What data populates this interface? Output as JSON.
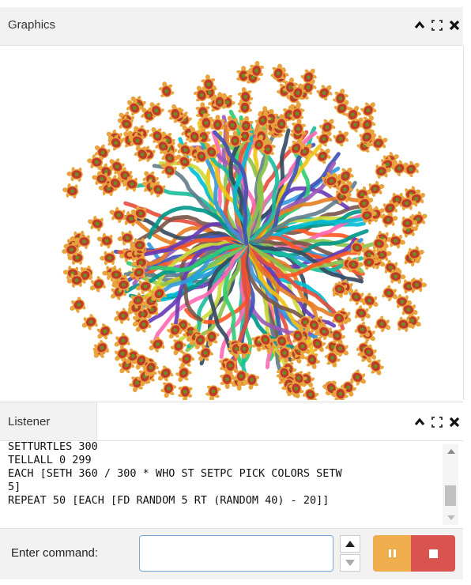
{
  "graphics": {
    "title": "Graphics",
    "controls": [
      "chevron-up-icon",
      "expand-icon",
      "close-icon"
    ]
  },
  "listener": {
    "title": "Listener",
    "controls": [
      "chevron-up-icon",
      "expand-icon",
      "close-icon"
    ],
    "output_lines": [
      "SETTURTLES 300",
      "TELLALL 0 299",
      "EACH [SETH 360 / 300 * WHO ST SETPC PICK COLORS SETW",
      "5]",
      "REPEAT 50 [EACH [FD RANDOM 5 RT (RANDOM 40) - 20]]"
    ]
  },
  "command": {
    "label": "Enter command:",
    "value": "",
    "placeholder": ""
  },
  "buttons": {
    "history_up": "arrow-up-icon",
    "history_down": "arrow-down-icon",
    "pause": "pause-icon",
    "stop": "stop-icon"
  },
  "colors": {
    "panel_bg": "#f2f2f2",
    "pause": "#f0ad4e",
    "stop": "#d9534f",
    "input_border": "#7aa7d9",
    "turtle_body": "#e8a33c",
    "turtle_shell": "#c0392b"
  }
}
